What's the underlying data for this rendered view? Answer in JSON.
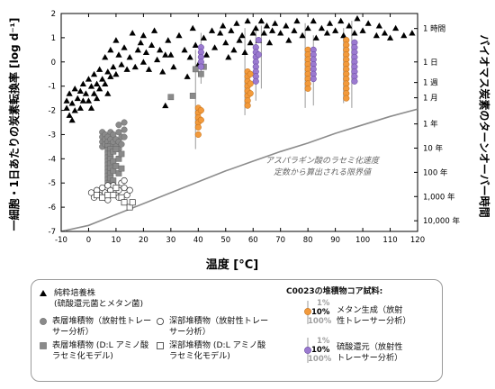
{
  "chart_data": {
    "type": "scatter",
    "xlabel": "温度 [°C]",
    "ylabel_left": "一細胞・1日あたりの炭素転換率 [log d⁻¹]",
    "ylabel_right": "バイオマス炭素のターンオーバー時間",
    "xlim": [
      -10,
      120
    ],
    "ylim": [
      -7,
      2
    ],
    "x_ticks": [
      "-10",
      "0",
      "10",
      "20",
      "30",
      "40",
      "50",
      "60",
      "70",
      "80",
      "90",
      "100",
      "110",
      "120"
    ],
    "y_ticks": [
      "-7",
      "-6",
      "-5",
      "-4",
      "-3",
      "-2",
      "-1",
      "0",
      "1",
      "2"
    ],
    "right_ticks": [
      {
        "label": "1 時間",
        "y": 1.38
      },
      {
        "label": "1 日",
        "y": 0
      },
      {
        "label": "1 週",
        "y": -0.85
      },
      {
        "label": "1 月",
        "y": -1.48
      },
      {
        "label": "1 年",
        "y": -2.56
      },
      {
        "label": "10 年",
        "y": -3.56
      },
      {
        "label": "100 年",
        "y": -4.56
      },
      {
        "label": "1,000 年",
        "y": -5.56
      },
      {
        "label": "10,000 年",
        "y": -6.56
      }
    ],
    "annotation": "アスパラギン酸のラセミ化速度\n定数から算出される限界値",
    "limit_curve": {
      "x": [
        -10,
        0,
        10,
        20,
        30,
        40,
        50,
        60,
        70,
        80,
        90,
        100,
        110,
        120
      ],
      "y": [
        -7.35,
        -6.75,
        -6.3,
        -5.85,
        -5.4,
        -4.95,
        -4.5,
        -4.1,
        -3.7,
        -3.35,
        -2.95,
        -2.6,
        -2.25,
        -1.95
      ]
    },
    "series": [
      {
        "name": "純粋培養株",
        "marker": "triangle",
        "points": [
          [
            -8,
            -1.6
          ],
          [
            -8,
            -1.9
          ],
          [
            -7,
            -1.3
          ],
          [
            -7,
            -2.2
          ],
          [
            -6,
            -1.7
          ],
          [
            -6,
            -2.4
          ],
          [
            -5,
            -1.1
          ],
          [
            -5,
            -2
          ],
          [
            -4,
            -1.5
          ],
          [
            -3,
            -1.2
          ],
          [
            -3,
            -1.9
          ],
          [
            -2,
            -0.9
          ],
          [
            -2,
            -1.6
          ],
          [
            -1,
            -1.3
          ],
          [
            0,
            -1.6
          ],
          [
            0,
            -0.7
          ],
          [
            1,
            -1
          ],
          [
            1,
            -1.9
          ],
          [
            2,
            -0.5
          ],
          [
            2,
            -1.3
          ],
          [
            3,
            -0.9
          ],
          [
            3,
            -1.5
          ],
          [
            4,
            -0.3
          ],
          [
            4,
            -1.1
          ],
          [
            5,
            -0.7
          ],
          [
            6,
            0.2
          ],
          [
            6,
            -0.9
          ],
          [
            7,
            -0.4
          ],
          [
            7,
            -1.3
          ],
          [
            8,
            0.5
          ],
          [
            8,
            -0.6
          ],
          [
            9,
            -0.2
          ],
          [
            10,
            0.9
          ],
          [
            10,
            -0.5
          ],
          [
            11,
            0.3
          ],
          [
            12,
            -0.1
          ],
          [
            13,
            0.6
          ],
          [
            14,
            -0.3
          ],
          [
            15,
            0.2
          ],
          [
            16,
            1.2
          ],
          [
            17,
            -0.2
          ],
          [
            18,
            0.5
          ],
          [
            19,
            0.8
          ],
          [
            20,
            0
          ],
          [
            20,
            1.1
          ],
          [
            21,
            0.4
          ],
          [
            22,
            -0.3
          ],
          [
            23,
            0.7
          ],
          [
            24,
            1.3
          ],
          [
            25,
            0.1
          ],
          [
            26,
            0.5
          ],
          [
            27,
            -0.4
          ],
          [
            28,
            0.3
          ],
          [
            28,
            -1.8
          ],
          [
            29,
            0.9
          ],
          [
            30,
            0.3
          ],
          [
            31,
            -0.2
          ],
          [
            33,
            1.1
          ],
          [
            35,
            0.5
          ],
          [
            36,
            -0.6
          ],
          [
            37,
            0.2
          ],
          [
            38,
            1.4
          ],
          [
            39,
            0.7
          ],
          [
            40,
            -0.1
          ],
          [
            42,
            1
          ],
          [
            43,
            0.3
          ],
          [
            45,
            1.3
          ],
          [
            46,
            0.6
          ],
          [
            48,
            1.2
          ],
          [
            49,
            1.5
          ],
          [
            50,
            0.8
          ],
          [
            51,
            0.2
          ],
          [
            52,
            1.3
          ],
          [
            53,
            0.5
          ],
          [
            54,
            1.6
          ],
          [
            55,
            0.9
          ],
          [
            56,
            1.1
          ],
          [
            57,
            0.4
          ],
          [
            58,
            1.7
          ],
          [
            59,
            0.8
          ],
          [
            60,
            1.2
          ],
          [
            61,
            1.4
          ],
          [
            62,
            0.9
          ],
          [
            63,
            1.7
          ],
          [
            64,
            1.2
          ],
          [
            65,
            1.5
          ],
          [
            66,
            0.8
          ],
          [
            67,
            1.3
          ],
          [
            68,
            1.6
          ],
          [
            70,
            1.2
          ],
          [
            72,
            1.5
          ],
          [
            73,
            0.9
          ],
          [
            75,
            1.3
          ],
          [
            76,
            1.7
          ],
          [
            78,
            1.1
          ],
          [
            80,
            1.4
          ],
          [
            82,
            1.7
          ],
          [
            83,
            1
          ],
          [
            85,
            1.4
          ],
          [
            87,
            1.2
          ],
          [
            88,
            1.6
          ],
          [
            90,
            1.3
          ],
          [
            92,
            1.7
          ],
          [
            93,
            1.1
          ],
          [
            95,
            1.5
          ],
          [
            97,
            1.2
          ],
          [
            98,
            1.8
          ],
          [
            100,
            1.3
          ],
          [
            102,
            1.6
          ],
          [
            105,
            1.1
          ],
          [
            106,
            1.5
          ],
          [
            108,
            1.2
          ],
          [
            110,
            1
          ],
          [
            112,
            1.4
          ],
          [
            115,
            1.1
          ],
          [
            118,
            1.2
          ]
        ]
      },
      {
        "name": "表層堆積物（放射性トレーサー分析）",
        "marker": "circle-grey",
        "points": [
          [
            5,
            -2.9
          ],
          [
            5,
            -3.1
          ],
          [
            5,
            -3.3
          ],
          [
            5,
            -3.5
          ],
          [
            6,
            -3
          ],
          [
            6,
            -3.2
          ],
          [
            6,
            -3.4
          ],
          [
            7,
            -3.1
          ],
          [
            7,
            -3.3
          ],
          [
            7,
            -3.5
          ],
          [
            8,
            -2.9
          ],
          [
            8,
            -3.2
          ],
          [
            8,
            -3.4
          ],
          [
            9,
            -3
          ],
          [
            9,
            -3.3
          ],
          [
            10,
            -3.2
          ],
          [
            10,
            -3.5
          ],
          [
            11,
            -2.9
          ],
          [
            11,
            -3.3
          ],
          [
            11,
            -3.6
          ],
          [
            12,
            -3.1
          ],
          [
            12,
            -3.4
          ],
          [
            13,
            -2.5
          ],
          [
            13,
            -2.8
          ],
          [
            13,
            -3.1
          ],
          [
            11,
            -2.6
          ]
        ]
      },
      {
        "name": "表層堆積物（D:L アミノ酸ラセミ化モデル）",
        "marker": "square-grey",
        "points": [
          [
            7,
            -3.5
          ],
          [
            7,
            -3.65
          ],
          [
            7,
            -3.8
          ],
          [
            7,
            -3.95
          ],
          [
            7,
            -4.1
          ],
          [
            7,
            -4.25
          ],
          [
            7,
            -4.4
          ],
          [
            7,
            -4.55
          ],
          [
            7,
            -4.7
          ],
          [
            7,
            -4.85
          ],
          [
            7,
            -5
          ],
          [
            8,
            -3.6
          ],
          [
            8,
            -3.8
          ],
          [
            8,
            -4
          ],
          [
            8,
            -4.2
          ],
          [
            8,
            -4.4
          ],
          [
            8,
            -4.6
          ],
          [
            8,
            -4.8
          ],
          [
            9,
            -3.7
          ],
          [
            9,
            -4.1
          ],
          [
            9,
            -4.5
          ],
          [
            9,
            -4.9
          ],
          [
            10,
            -3.6
          ],
          [
            10,
            -4.3
          ],
          [
            11,
            -4
          ],
          [
            11,
            -4.6
          ],
          [
            12,
            -3.8
          ],
          [
            12,
            -4.4
          ],
          [
            30,
            -1.45
          ],
          [
            38,
            -1.4
          ],
          [
            39,
            -0.3
          ],
          [
            41,
            -0.5
          ],
          [
            42,
            -0.2
          ]
        ]
      },
      {
        "name": "深部堆積物（放射性トレーサー分析）",
        "marker": "circle-white",
        "points": [
          [
            1,
            -5.4
          ],
          [
            2,
            -5.6
          ],
          [
            3,
            -5.3
          ],
          [
            4,
            -5.5
          ],
          [
            5,
            -5.2
          ],
          [
            6,
            -5.4
          ],
          [
            7,
            -5.7
          ],
          [
            8,
            -5.3
          ],
          [
            9,
            -5.1
          ],
          [
            10,
            -5.4
          ],
          [
            11,
            -5.6
          ],
          [
            12,
            -5
          ],
          [
            13,
            -5.2
          ],
          [
            14,
            -5.5
          ],
          [
            15,
            -5.3
          ],
          [
            7,
            -5.1
          ],
          [
            11,
            -5.3
          ],
          [
            13,
            -4.9
          ]
        ]
      },
      {
        "name": "深部堆積物（D:L アミノ酸ラセミ化モデル）",
        "marker": "square-white",
        "points": [
          [
            3,
            -5.5
          ],
          [
            5,
            -5.6
          ],
          [
            7,
            -5.5
          ],
          [
            9,
            -5.5
          ],
          [
            10,
            -5.2
          ],
          [
            12,
            -5.6
          ],
          [
            13,
            -5.8
          ],
          [
            15,
            -6
          ],
          [
            16,
            -5.8
          ]
        ]
      },
      {
        "name": "メタン生成（放射性トレーサー分析）",
        "marker": "circle-orange",
        "points": [
          [
            40,
            -1.9
          ],
          [
            40,
            -2.1
          ],
          [
            40,
            -2.3
          ],
          [
            40,
            -2.5
          ],
          [
            40,
            -2.7
          ],
          [
            40,
            -3
          ],
          [
            41,
            -2
          ],
          [
            41,
            -2.4
          ],
          [
            58,
            -0.4
          ],
          [
            58,
            -0.6
          ],
          [
            58,
            -0.8
          ],
          [
            58,
            -1
          ],
          [
            58,
            -1.2
          ],
          [
            58,
            -1.4
          ],
          [
            58,
            -1.6
          ],
          [
            58,
            -1.8
          ],
          [
            59,
            -0.5
          ],
          [
            59,
            -0.9
          ],
          [
            59,
            -1.3
          ],
          [
            80,
            0.5
          ],
          [
            80,
            0.3
          ],
          [
            80,
            0.1
          ],
          [
            80,
            -0.1
          ],
          [
            80,
            -0.3
          ],
          [
            80,
            -0.5
          ],
          [
            80,
            -0.7
          ],
          [
            80,
            -0.9
          ],
          [
            80,
            -1.1
          ],
          [
            94,
            0.9
          ],
          [
            94,
            0.7
          ],
          [
            94,
            0.5
          ],
          [
            94,
            0.3
          ],
          [
            94,
            0.1
          ],
          [
            94,
            -0.1
          ],
          [
            94,
            -0.3
          ],
          [
            94,
            -0.5
          ],
          [
            94,
            -0.7
          ],
          [
            94,
            -0.9
          ],
          [
            94,
            -1.1
          ],
          [
            94,
            -1.3
          ],
          [
            94,
            -1.5
          ]
        ]
      },
      {
        "name": "硫酸還元（放射性トレーサー分析）",
        "marker": "circle-purple",
        "points": [
          [
            41,
            0.6
          ],
          [
            41,
            0.4
          ],
          [
            41,
            0.2
          ],
          [
            41,
            0
          ],
          [
            41,
            -0.2
          ],
          [
            61,
            0.6
          ],
          [
            61,
            0.4
          ],
          [
            61,
            0.2
          ],
          [
            61,
            0
          ],
          [
            61,
            -0.2
          ],
          [
            61,
            -0.4
          ],
          [
            61,
            -0.6
          ],
          [
            61,
            -0.8
          ],
          [
            62,
            0.9
          ],
          [
            62,
            0.3
          ],
          [
            82,
            0.5
          ],
          [
            82,
            0.3
          ],
          [
            82,
            0.1
          ],
          [
            82,
            -0.1
          ],
          [
            82,
            -0.3
          ],
          [
            82,
            -0.5
          ],
          [
            82,
            -0.7
          ],
          [
            97,
            0.8
          ],
          [
            97,
            0.6
          ],
          [
            97,
            0.4
          ],
          [
            97,
            0.2
          ],
          [
            97,
            0
          ],
          [
            97,
            -0.2
          ],
          [
            97,
            -0.4
          ],
          [
            97,
            -0.6
          ],
          [
            97,
            -0.8
          ]
        ]
      }
    ],
    "error_bars": [
      {
        "x": 39,
        "lo": -3.6,
        "hi": 0.5
      },
      {
        "x": 41,
        "lo": -0.9,
        "hi": 1.2
      },
      {
        "x": 57,
        "lo": -2.2,
        "hi": 1.4
      },
      {
        "x": 61,
        "lo": -1.6,
        "hi": 1.3
      },
      {
        "x": 63,
        "lo": -1.1,
        "hi": 1.5
      },
      {
        "x": 79,
        "lo": -1.9,
        "hi": 1.6
      },
      {
        "x": 82,
        "lo": -1.8,
        "hi": 1.1
      },
      {
        "x": 93,
        "lo": -1.7,
        "hi": 1.4
      },
      {
        "x": 96,
        "lo": -1.9,
        "hi": 1.7
      }
    ],
    "colors": {
      "triangle": "#000000",
      "grey_fill": "#8a8a8a",
      "orange": "#f29a3c",
      "purple": "#9b7ad0",
      "curve": "#8c8c8c",
      "errbar": "#9a9a9a"
    }
  },
  "legend": {
    "pure_culture": "純粋培養株\n(硫酸還元菌とメタン菌)",
    "surface_tracer": "表層堆積物（放射性トレー\nサー分析）",
    "deep_tracer": "深部堆積物（放射性トレー\nサー分析）",
    "surface_dl": "表層堆積物 (D:L アミノ酸\nラセミ化モデル)",
    "deep_dl": "深部堆積物 (D:L アミノ酸\nラセミ化モデル)",
    "c0023_title": "C0023の堆積物コア試料:",
    "methanogenesis": "メタン生成（放射\n性トレーサー分析）",
    "sulfate_reduction": "硫酸還元（放射性\nトレーサー分析）",
    "pct1": "1%",
    "pct10": "10%",
    "pct100": "100%"
  }
}
